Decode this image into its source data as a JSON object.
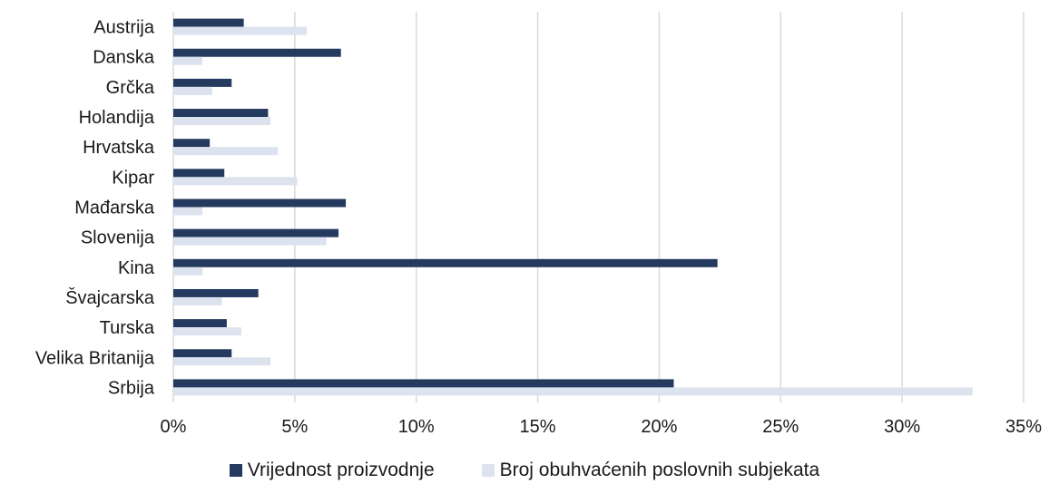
{
  "chart_data": {
    "type": "bar",
    "orientation": "horizontal",
    "categories": [
      "Austrija",
      "Danska",
      "Grčka",
      "Holandija",
      "Hrvatska",
      "Kipar",
      "Mađarska",
      "Slovenija",
      "Kina",
      "Švajcarska",
      "Turska",
      "Velika Britanija",
      "Srbija"
    ],
    "series": [
      {
        "name": "Vrijednost proizvodnje",
        "color": "#243a5e",
        "values": [
          2.9,
          6.9,
          2.4,
          3.9,
          1.5,
          2.1,
          7.1,
          6.8,
          22.4,
          3.5,
          2.2,
          2.4,
          20.6
        ]
      },
      {
        "name": "Broj obuhvaćenih poslovnih subjekata",
        "color": "#dce3ef",
        "values": [
          5.5,
          1.2,
          1.6,
          4.0,
          4.3,
          5.1,
          1.2,
          6.3,
          1.2,
          2.0,
          2.8,
          4.0,
          32.9
        ]
      }
    ],
    "xlim": [
      0,
      35
    ],
    "xticks": [
      "0%",
      "5%",
      "10%",
      "15%",
      "20%",
      "25%",
      "30%",
      "35%"
    ],
    "grid": true,
    "legend_position": "bottom",
    "title": "",
    "xlabel": "",
    "ylabel": ""
  }
}
